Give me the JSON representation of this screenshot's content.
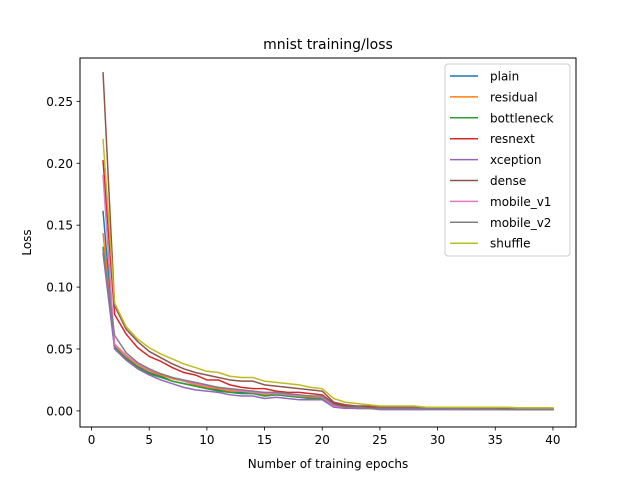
{
  "chart_data": {
    "type": "line",
    "title": "mnist training/loss",
    "xlabel": "Number of training epochs",
    "ylabel": "Loss",
    "xlim": [
      -1,
      42
    ],
    "ylim": [
      -0.013,
      0.285
    ],
    "xticks": [
      0,
      5,
      10,
      15,
      20,
      25,
      30,
      35,
      40
    ],
    "yticks": [
      0.0,
      0.05,
      0.1,
      0.15,
      0.2,
      0.25
    ],
    "ytick_labels": [
      "0.00",
      "0.05",
      "0.10",
      "0.15",
      "0.20",
      "0.25"
    ],
    "grid": false,
    "legend_position": "top-right",
    "x": [
      1,
      2,
      3,
      4,
      5,
      6,
      7,
      8,
      9,
      10,
      11,
      12,
      13,
      14,
      15,
      16,
      17,
      18,
      19,
      20,
      21,
      22,
      23,
      24,
      25,
      26,
      27,
      28,
      29,
      30,
      31,
      32,
      33,
      34,
      35,
      36,
      37,
      38,
      39,
      40
    ],
    "series": [
      {
        "name": "plain",
        "color": "#1f77b4",
        "values": [
          0.161,
          0.052,
          0.043,
          0.036,
          0.031,
          0.028,
          0.024,
          0.022,
          0.02,
          0.018,
          0.017,
          0.015,
          0.015,
          0.014,
          0.012,
          0.013,
          0.012,
          0.011,
          0.01,
          0.01,
          0.004,
          0.003,
          0.002,
          0.002,
          0.002,
          0.002,
          0.002,
          0.0015,
          0.0015,
          0.0015,
          0.0015,
          0.0012,
          0.0012,
          0.0012,
          0.0012,
          0.0012,
          0.0011,
          0.0011,
          0.0011,
          0.0011
        ]
      },
      {
        "name": "residual",
        "color": "#ff7f0e",
        "values": [
          0.143,
          0.053,
          0.044,
          0.037,
          0.032,
          0.029,
          0.026,
          0.024,
          0.021,
          0.019,
          0.018,
          0.016,
          0.016,
          0.015,
          0.013,
          0.014,
          0.013,
          0.012,
          0.011,
          0.011,
          0.004,
          0.003,
          0.002,
          0.002,
          0.002,
          0.002,
          0.002,
          0.0015,
          0.0015,
          0.0015,
          0.0014,
          0.0013,
          0.0013,
          0.0013,
          0.0012,
          0.0012,
          0.0012,
          0.0012,
          0.0011,
          0.0011
        ]
      },
      {
        "name": "bottleneck",
        "color": "#2ca02c",
        "values": [
          0.132,
          0.051,
          0.042,
          0.035,
          0.03,
          0.027,
          0.024,
          0.022,
          0.02,
          0.018,
          0.016,
          0.015,
          0.014,
          0.014,
          0.012,
          0.013,
          0.012,
          0.011,
          0.01,
          0.01,
          0.004,
          0.003,
          0.002,
          0.002,
          0.002,
          0.002,
          0.002,
          0.0015,
          0.0015,
          0.0015,
          0.0014,
          0.0013,
          0.0012,
          0.0012,
          0.0012,
          0.0011,
          0.0011,
          0.0011,
          0.0011,
          0.0011
        ]
      },
      {
        "name": "resnext",
        "color": "#d62728",
        "values": [
          0.202,
          0.078,
          0.062,
          0.051,
          0.044,
          0.04,
          0.035,
          0.031,
          0.029,
          0.025,
          0.025,
          0.021,
          0.019,
          0.018,
          0.018,
          0.016,
          0.015,
          0.015,
          0.014,
          0.013,
          0.006,
          0.004,
          0.003,
          0.003,
          0.003,
          0.002,
          0.002,
          0.002,
          0.002,
          0.002,
          0.002,
          0.0018,
          0.0017,
          0.0016,
          0.0015,
          0.0015,
          0.0014,
          0.0014,
          0.0013,
          0.0013
        ]
      },
      {
        "name": "xception",
        "color": "#9467bd",
        "values": [
          0.127,
          0.05,
          0.041,
          0.034,
          0.029,
          0.025,
          0.022,
          0.019,
          0.017,
          0.016,
          0.015,
          0.013,
          0.012,
          0.012,
          0.01,
          0.011,
          0.01,
          0.009,
          0.009,
          0.009,
          0.003,
          0.002,
          0.002,
          0.002,
          0.001,
          0.001,
          0.001,
          0.001,
          0.001,
          0.001,
          0.001,
          0.001,
          0.001,
          0.001,
          0.001,
          0.001,
          0.0009,
          0.0009,
          0.0009,
          0.0009
        ]
      },
      {
        "name": "dense",
        "color": "#8c564b",
        "values": [
          0.273,
          0.085,
          0.066,
          0.056,
          0.048,
          0.043,
          0.038,
          0.034,
          0.031,
          0.029,
          0.027,
          0.025,
          0.024,
          0.024,
          0.021,
          0.02,
          0.019,
          0.018,
          0.017,
          0.016,
          0.007,
          0.005,
          0.004,
          0.004,
          0.003,
          0.003,
          0.003,
          0.003,
          0.002,
          0.002,
          0.002,
          0.002,
          0.002,
          0.002,
          0.002,
          0.002,
          0.0018,
          0.0018,
          0.0017,
          0.0017
        ]
      },
      {
        "name": "mobile_v1",
        "color": "#e377c2",
        "values": [
          0.19,
          0.054,
          0.045,
          0.038,
          0.033,
          0.03,
          0.027,
          0.024,
          0.022,
          0.02,
          0.019,
          0.017,
          0.016,
          0.015,
          0.014,
          0.014,
          0.013,
          0.012,
          0.012,
          0.011,
          0.004,
          0.003,
          0.003,
          0.002,
          0.002,
          0.002,
          0.002,
          0.002,
          0.0018,
          0.0017,
          0.0016,
          0.0015,
          0.0015,
          0.0014,
          0.0014,
          0.0013,
          0.0013,
          0.0013,
          0.0012,
          0.0012
        ]
      },
      {
        "name": "mobile_v2",
        "color": "#7f7f7f",
        "values": [
          0.13,
          0.061,
          0.047,
          0.039,
          0.034,
          0.03,
          0.027,
          0.025,
          0.023,
          0.021,
          0.019,
          0.018,
          0.017,
          0.016,
          0.015,
          0.015,
          0.014,
          0.013,
          0.012,
          0.012,
          0.005,
          0.003,
          0.003,
          0.002,
          0.002,
          0.002,
          0.002,
          0.002,
          0.0018,
          0.0017,
          0.0016,
          0.0015,
          0.0015,
          0.0014,
          0.0014,
          0.0013,
          0.0013,
          0.0013,
          0.0012,
          0.0012
        ]
      },
      {
        "name": "shuffle",
        "color": "#bcbd22",
        "values": [
          0.219,
          0.087,
          0.068,
          0.058,
          0.051,
          0.046,
          0.042,
          0.038,
          0.035,
          0.032,
          0.031,
          0.028,
          0.027,
          0.027,
          0.024,
          0.023,
          0.022,
          0.021,
          0.019,
          0.018,
          0.01,
          0.007,
          0.006,
          0.005,
          0.004,
          0.004,
          0.004,
          0.004,
          0.003,
          0.003,
          0.003,
          0.003,
          0.003,
          0.003,
          0.003,
          0.003,
          0.0025,
          0.0025,
          0.0025,
          0.0025
        ]
      }
    ]
  }
}
